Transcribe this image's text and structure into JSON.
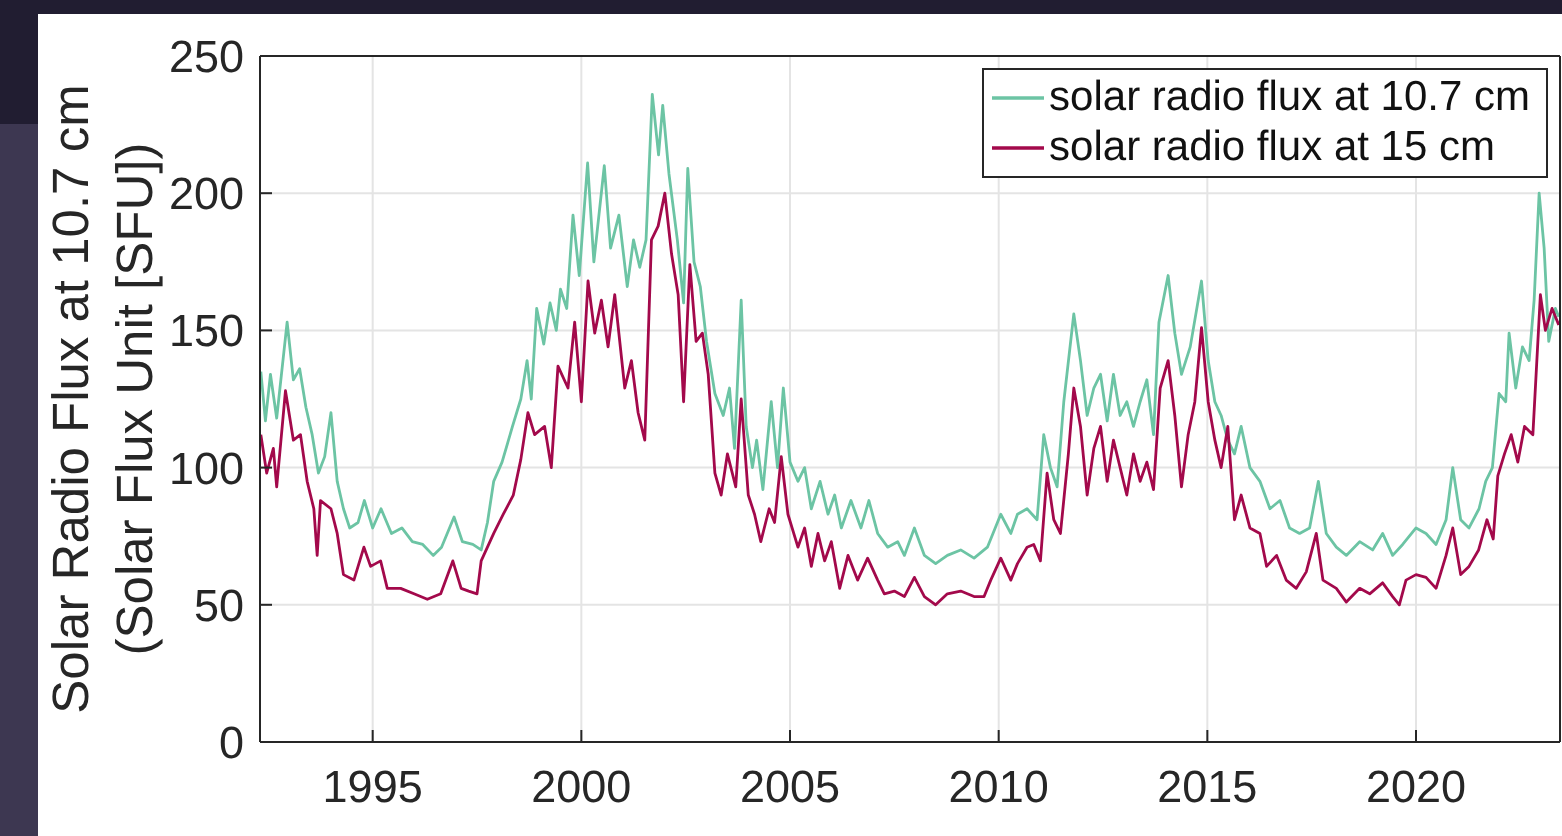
{
  "chart_data": {
    "type": "line",
    "ylabel": "Solar Radio Flux at 10.7 cm\n(Solar Flux Unit [SFU])",
    "xlim": [
      1992.3,
      2023.45
    ],
    "xticks": [
      1995,
      2000,
      2005,
      2010,
      2015,
      2020
    ],
    "ylim": [
      0,
      250
    ],
    "yticks": [
      0,
      50,
      100,
      150,
      200,
      250
    ],
    "grid": true,
    "legend": "top right",
    "series": [
      {
        "name": "solar radio flux at 10.7 cm",
        "color": "#6cc4a4",
        "x": [
          1992.32,
          1992.43,
          1992.55,
          1992.7,
          1992.95,
          1993.1,
          1993.25,
          1993.4,
          1993.55,
          1993.7,
          1993.85,
          1994.0,
          1994.15,
          1994.3,
          1994.45,
          1994.65,
          1994.8,
          1995.0,
          1995.2,
          1995.45,
          1995.7,
          1995.95,
          1996.2,
          1996.45,
          1996.65,
          1996.95,
          1997.15,
          1997.4,
          1997.6,
          1997.75,
          1997.9,
          1998.1,
          1998.35,
          1998.55,
          1998.7,
          1998.8,
          1998.93,
          1999.1,
          1999.25,
          1999.4,
          1999.5,
          1999.65,
          1999.8,
          1999.95,
          2000.15,
          2000.3,
          2000.55,
          2000.7,
          2000.9,
          2001.1,
          2001.25,
          2001.4,
          2001.55,
          2001.7,
          2001.85,
          2001.95,
          2002.1,
          2002.3,
          2002.45,
          2002.55,
          2002.7,
          2002.85,
          2003.0,
          2003.2,
          2003.4,
          2003.55,
          2003.67,
          2003.83,
          2003.95,
          2004.1,
          2004.2,
          2004.35,
          2004.55,
          2004.7,
          2004.84,
          2005.0,
          2005.19,
          2005.35,
          2005.51,
          2005.72,
          2005.91,
          2006.07,
          2006.23,
          2006.46,
          2006.7,
          2006.89,
          2007.1,
          2007.34,
          2007.58,
          2007.74,
          2007.98,
          2008.22,
          2008.49,
          2008.77,
          2009.09,
          2009.41,
          2009.73,
          2010.05,
          2010.29,
          2010.45,
          2010.68,
          2010.92,
          2011.08,
          2011.24,
          2011.4,
          2011.56,
          2011.8,
          2011.96,
          2012.12,
          2012.28,
          2012.44,
          2012.6,
          2012.75,
          2012.91,
          2013.07,
          2013.23,
          2013.39,
          2013.55,
          2013.71,
          2013.84,
          2014.06,
          2014.22,
          2014.38,
          2014.59,
          2014.86,
          2015.02,
          2015.18,
          2015.33,
          2015.49,
          2015.65,
          2015.81,
          2016.02,
          2016.26,
          2016.5,
          2016.74,
          2016.97,
          2017.21,
          2017.45,
          2017.66,
          2017.85,
          2018.09,
          2018.33,
          2018.65,
          2018.96,
          2019.2,
          2019.44,
          2019.68,
          2020.0,
          2020.24,
          2020.48,
          2020.72,
          2020.88,
          2021.07,
          2021.27,
          2021.51,
          2021.67,
          2021.83,
          2021.99,
          2022.15,
          2022.23,
          2022.39,
          2022.55,
          2022.71,
          2022.83,
          2022.95,
          2023.07,
          2023.18,
          2023.34,
          2023.42
        ],
        "values": [
          135,
          117,
          134,
          118,
          153,
          132,
          136,
          122,
          112,
          98,
          104,
          120,
          95,
          85,
          78,
          80,
          88,
          78,
          85,
          76,
          78,
          73,
          72,
          68,
          71,
          82,
          73,
          72,
          70,
          80,
          95,
          102,
          115,
          125,
          139,
          125,
          158,
          145,
          160,
          150,
          165,
          158,
          192,
          170,
          211,
          175,
          210,
          180,
          192,
          166,
          183,
          173,
          183,
          236,
          214,
          232,
          207,
          183,
          160,
          209,
          175,
          166,
          146,
          127,
          119,
          129,
          107,
          161,
          115,
          100,
          110,
          92,
          124,
          100,
          129,
          102,
          95,
          100,
          85,
          95,
          83,
          90,
          78,
          88,
          78,
          88,
          76,
          71,
          73,
          68,
          78,
          68,
          65,
          68,
          70,
          67,
          71,
          83,
          76,
          83,
          85,
          81,
          112,
          100,
          93,
          124,
          156,
          139,
          119,
          129,
          134,
          117,
          134,
          119,
          124,
          115,
          124,
          132,
          112,
          153,
          170,
          149,
          134,
          144,
          168,
          139,
          124,
          119,
          110,
          105,
          115,
          100,
          95,
          85,
          88,
          78,
          76,
          78,
          95,
          76,
          71,
          68,
          73,
          70,
          76,
          68,
          72,
          78,
          76,
          72,
          81,
          100,
          81,
          78,
          85,
          95,
          100,
          127,
          124,
          149,
          129,
          144,
          139,
          161,
          200,
          180,
          146,
          158,
          155
        ]
      },
      {
        "name": "solar radio flux at 15 cm",
        "color": "#a3094b",
        "x": [
          1992.32,
          1992.46,
          1992.62,
          1992.7,
          1992.91,
          1993.1,
          1993.27,
          1993.43,
          1993.59,
          1993.67,
          1993.75,
          1994.0,
          1994.15,
          1994.3,
          1994.55,
          1994.79,
          1994.95,
          1995.19,
          1995.35,
          1995.67,
          1995.99,
          1996.31,
          1996.63,
          1996.92,
          1997.12,
          1997.3,
          1997.5,
          1997.6,
          1997.9,
          1998.13,
          1998.37,
          1998.55,
          1998.72,
          1998.88,
          1999.12,
          1999.28,
          1999.44,
          1999.68,
          1999.84,
          2000.0,
          2000.16,
          2000.32,
          2000.48,
          2000.64,
          2000.8,
          2001.04,
          2001.2,
          2001.36,
          2001.52,
          2001.68,
          2001.84,
          2002.0,
          2002.16,
          2002.32,
          2002.45,
          2002.6,
          2002.75,
          2002.9,
          2003.04,
          2003.2,
          2003.35,
          2003.5,
          2003.7,
          2003.83,
          2004.0,
          2004.15,
          2004.3,
          2004.5,
          2004.63,
          2004.79,
          2004.95,
          2005.19,
          2005.35,
          2005.51,
          2005.67,
          2005.83,
          2005.99,
          2006.19,
          2006.39,
          2006.62,
          2006.86,
          2007.1,
          2007.26,
          2007.5,
          2007.74,
          2007.98,
          2008.22,
          2008.49,
          2008.77,
          2009.09,
          2009.41,
          2009.65,
          2009.81,
          2010.05,
          2010.29,
          2010.45,
          2010.68,
          2010.84,
          2011.0,
          2011.16,
          2011.32,
          2011.48,
          2011.67,
          2011.8,
          2011.96,
          2012.12,
          2012.28,
          2012.44,
          2012.6,
          2012.75,
          2012.91,
          2013.07,
          2013.23,
          2013.39,
          2013.55,
          2013.71,
          2013.87,
          2014.06,
          2014.22,
          2014.38,
          2014.54,
          2014.7,
          2014.86,
          2015.02,
          2015.18,
          2015.33,
          2015.49,
          2015.65,
          2015.81,
          2016.02,
          2016.26,
          2016.42,
          2016.66,
          2016.89,
          2017.13,
          2017.37,
          2017.61,
          2017.77,
          2018.09,
          2018.33,
          2018.65,
          2018.89,
          2019.2,
          2019.44,
          2019.6,
          2019.76,
          2020.0,
          2020.24,
          2020.48,
          2020.72,
          2020.88,
          2021.07,
          2021.27,
          2021.5,
          2021.7,
          2021.85,
          2021.96,
          2022.12,
          2022.28,
          2022.44,
          2022.6,
          2022.8,
          2022.98,
          2023.1,
          2023.26,
          2023.42
        ],
        "values": [
          112,
          98,
          107,
          93,
          128,
          110,
          112,
          95,
          85,
          68,
          88,
          85,
          76,
          61,
          59,
          71,
          64,
          66,
          56,
          56,
          54,
          52,
          54,
          66,
          56,
          55,
          54,
          66,
          76,
          83,
          90,
          103,
          120,
          112,
          115,
          100,
          137,
          129,
          153,
          124,
          168,
          149,
          161,
          144,
          163,
          129,
          139,
          120,
          110,
          183,
          188,
          200,
          178,
          163,
          124,
          174,
          146,
          149,
          134,
          98,
          90,
          105,
          93,
          125,
          90,
          83,
          73,
          85,
          80,
          104,
          83,
          71,
          78,
          64,
          76,
          66,
          73,
          56,
          68,
          59,
          67,
          59,
          54,
          55,
          53,
          60,
          53,
          50,
          54,
          55,
          53,
          53,
          59,
          67,
          59,
          65,
          71,
          72,
          66,
          98,
          81,
          76,
          105,
          129,
          115,
          90,
          107,
          115,
          95,
          110,
          100,
          90,
          105,
          95,
          102,
          92,
          129,
          139,
          119,
          93,
          112,
          124,
          151,
          124,
          110,
          100,
          115,
          81,
          90,
          78,
          76,
          64,
          68,
          59,
          56,
          62,
          76,
          59,
          56,
          51,
          56,
          54,
          58,
          53,
          50,
          59,
          61,
          60,
          56,
          68,
          78,
          61,
          64,
          70,
          81,
          74,
          97,
          105,
          112,
          102,
          115,
          112,
          163,
          150,
          158,
          152
        ]
      }
    ]
  }
}
